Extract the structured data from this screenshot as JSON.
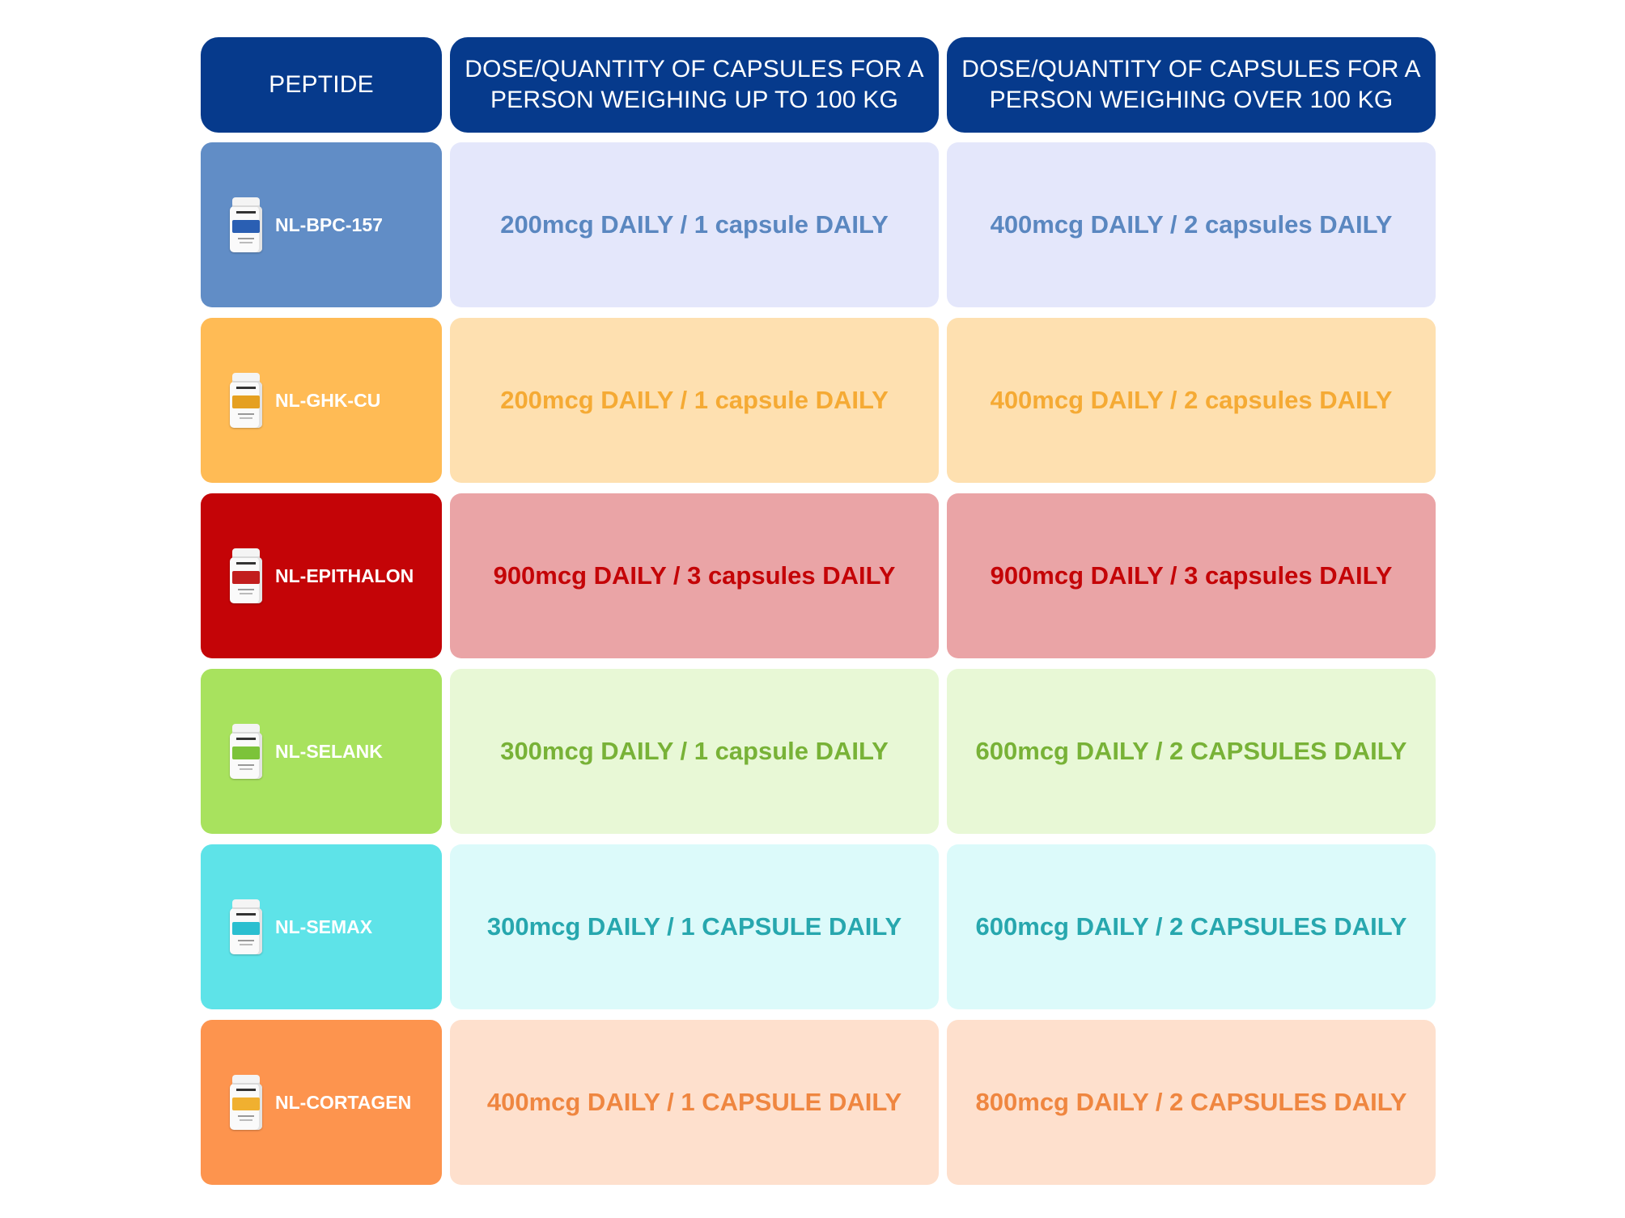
{
  "header": {
    "col1": "PEPTIDE",
    "col2_line1": "DOSE/QUANTITY OF CAPSULES FOR A",
    "col2_line2": "PERSON WEIGHING UP TO 100 KG",
    "col3_line1": "DOSE/QUANTITY OF CAPSULES FOR A",
    "col3_line2": "PERSON WEIGHING OVER 100 KG"
  },
  "header_color": "#063a8c",
  "rows": [
    {
      "peptide": "NL-BPC-157",
      "dose_up_to_100kg": "200mcg DAILY / 1 capsule DAILY",
      "dose_over_100kg": "400mcg DAILY / 2 capsules DAILY",
      "name_bg": "#618dc6",
      "dose_bg": "#e4e7fb",
      "text_color": "#5a87c0",
      "label_color": "#2a5fb3",
      "icon": "supplement-bottle-icon"
    },
    {
      "peptide": "NL-GHK-CU",
      "dose_up_to_100kg": "200mcg DAILY / 1 capsule DAILY",
      "dose_over_100kg": "400mcg DAILY / 2 capsules DAILY",
      "name_bg": "#ffbb55",
      "dose_bg": "#fee0b0",
      "text_color": "#f5aa34",
      "label_color": "#e5a020",
      "icon": "supplement-bottle-icon"
    },
    {
      "peptide": "NL-EPITHALON",
      "dose_up_to_100kg": "900mcg DAILY / 3 capsules DAILY",
      "dose_over_100kg": "900mcg DAILY / 3 capsules DAILY",
      "name_bg": "#c40407",
      "dose_bg": "#eaa4a6",
      "text_color": "#c40407",
      "label_color": "#c21d1d",
      "icon": "supplement-bottle-icon"
    },
    {
      "peptide": "NL-SELANK",
      "dose_up_to_100kg": "300mcg DAILY / 1 capsule DAILY",
      "dose_over_100kg": "600mcg DAILY / 2 CAPSULES DAILY",
      "name_bg": "#a8e25e",
      "dose_bg": "#e8f8d6",
      "text_color": "#78b237",
      "label_color": "#7cc33a",
      "icon": "supplement-bottle-icon"
    },
    {
      "peptide": "NL-SEMAX",
      "dose_up_to_100kg": "300mcg DAILY / 1 CAPSULE DAILY",
      "dose_over_100kg": "600mcg DAILY / 2 CAPSULES DAILY",
      "name_bg": "#5ee3e8",
      "dose_bg": "#dcfafa",
      "text_color": "#27a7ae",
      "label_color": "#2bbfd0",
      "icon": "supplement-bottle-icon"
    },
    {
      "peptide": "NL-CORTAGEN",
      "dose_up_to_100kg": "400mcg DAILY / 1 CAPSULE DAILY",
      "dose_over_100kg": "800mcg DAILY / 2 CAPSULES DAILY",
      "name_bg": "#fd944e",
      "dose_bg": "#fee0cd",
      "text_color": "#ef8640",
      "label_color": "#f0b030",
      "icon": "supplement-bottle-icon"
    }
  ]
}
